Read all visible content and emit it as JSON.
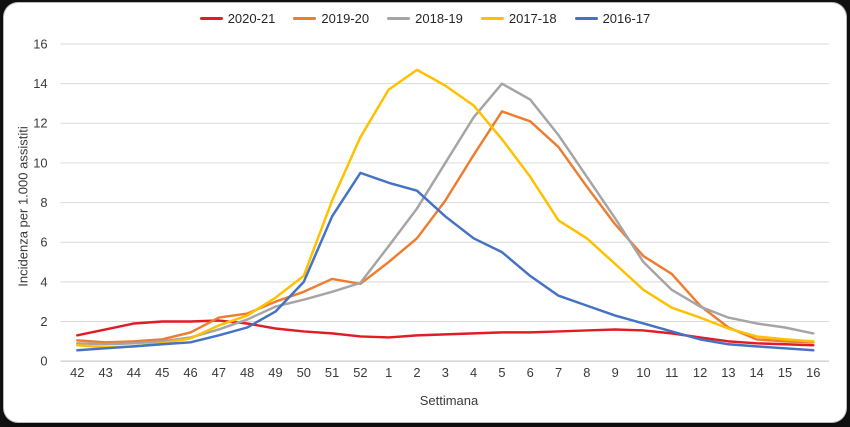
{
  "frame": {
    "background_color": "#111111",
    "card_color": "#ffffff"
  },
  "chart_data": {
    "type": "line",
    "title": "",
    "xlabel": "Settimana",
    "ylabel": "Incidenza per 1.000 assisttti",
    "ylabel_text": "Incidenza per 1.000 assistiti",
    "ylim": [
      0,
      16
    ],
    "yticks": [
      0,
      2,
      4,
      6,
      8,
      10,
      12,
      14,
      16
    ],
    "grid": "horizontal",
    "gridline_color": "#d9d9d9",
    "axis_line_color": "#bfbfbf",
    "tick_label_color": "#3a3a3a",
    "legend_position": "top",
    "categories": [
      "42",
      "43",
      "44",
      "45",
      "46",
      "47",
      "48",
      "49",
      "50",
      "51",
      "52",
      "1",
      "2",
      "3",
      "4",
      "5",
      "6",
      "7",
      "8",
      "9",
      "10",
      "11",
      "12",
      "13",
      "14",
      "15",
      "16"
    ],
    "series": [
      {
        "name": "2020-21",
        "color": "#e21c25",
        "values": [
          1.3,
          1.6,
          1.9,
          2.0,
          2.0,
          2.05,
          1.9,
          1.65,
          1.5,
          1.4,
          1.25,
          1.2,
          1.3,
          1.35,
          1.4,
          1.45,
          1.45,
          1.5,
          1.55,
          1.6,
          1.55,
          1.4,
          1.2,
          1.0,
          0.9,
          0.85,
          0.8
        ]
      },
      {
        "name": "2019-20",
        "color": "#ed7d31",
        "values": [
          1.05,
          0.95,
          1.0,
          1.1,
          1.45,
          2.2,
          2.4,
          3.0,
          3.5,
          4.15,
          3.9,
          5.0,
          6.2,
          8.1,
          10.4,
          12.6,
          12.1,
          10.8,
          8.8,
          6.9,
          5.3,
          4.4,
          2.8,
          1.7,
          1.1,
          1.0,
          0.95
        ]
      },
      {
        "name": "2018-19",
        "color": "#a5a5a5",
        "values": [
          0.9,
          0.85,
          0.9,
          1.0,
          1.2,
          1.6,
          2.1,
          2.75,
          3.1,
          3.5,
          3.95,
          5.8,
          7.7,
          10.0,
          12.3,
          14.0,
          13.2,
          11.4,
          9.3,
          7.2,
          5.0,
          3.6,
          2.75,
          2.2,
          1.9,
          1.7,
          1.4
        ]
      },
      {
        "name": "2017-18",
        "color": "#ffc000",
        "values": [
          0.8,
          0.7,
          0.75,
          0.9,
          1.15,
          1.8,
          2.3,
          3.2,
          4.3,
          8.1,
          11.3,
          13.7,
          14.7,
          13.9,
          12.9,
          11.2,
          9.3,
          7.1,
          6.2,
          4.9,
          3.6,
          2.7,
          2.2,
          1.65,
          1.25,
          1.1,
          1.0
        ]
      },
      {
        "name": "2016-17",
        "color": "#4472c4",
        "values": [
          0.55,
          0.65,
          0.75,
          0.85,
          0.95,
          1.3,
          1.7,
          2.5,
          4.0,
          7.3,
          9.5,
          9.0,
          8.6,
          7.3,
          6.2,
          5.5,
          4.3,
          3.3,
          2.8,
          2.3,
          1.9,
          1.5,
          1.1,
          0.85,
          0.75,
          0.65,
          0.55
        ]
      }
    ]
  }
}
